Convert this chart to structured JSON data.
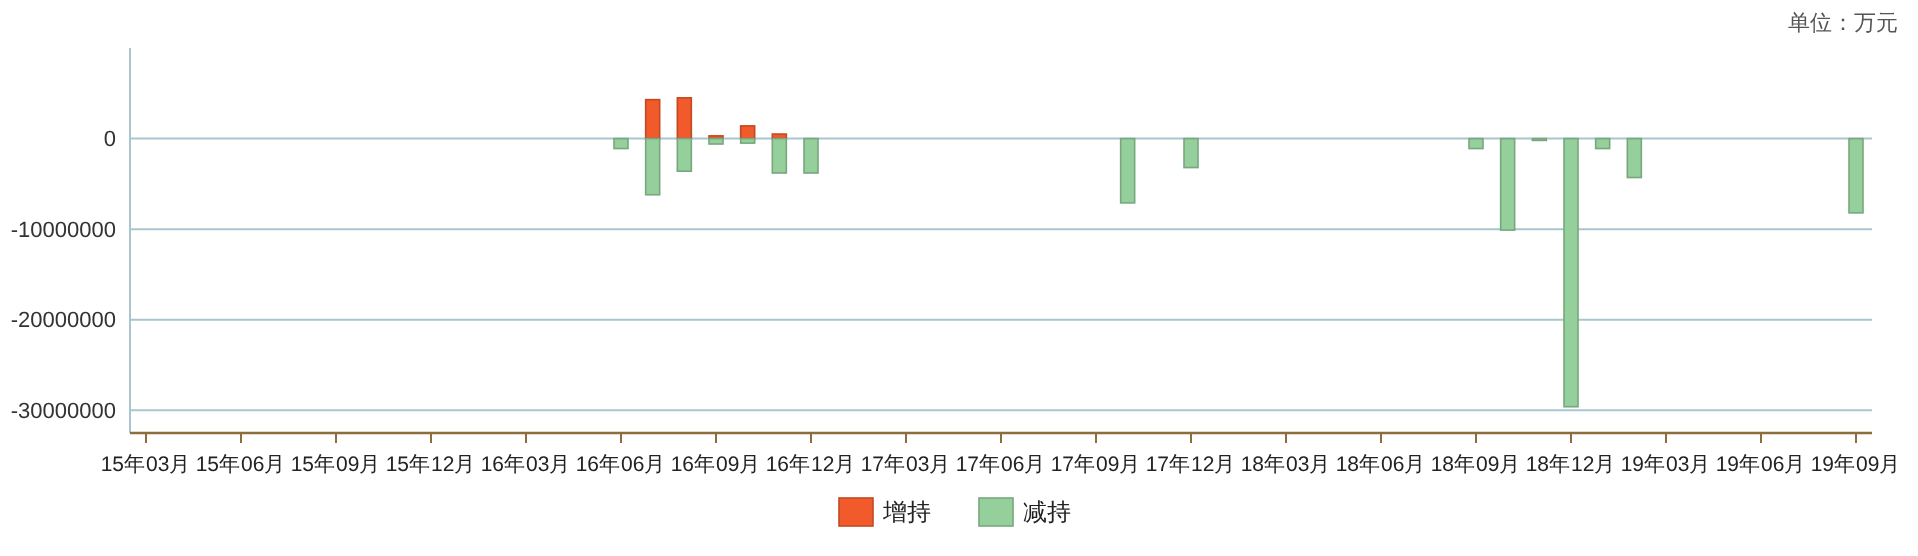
{
  "chart_data": {
    "type": "bar",
    "stacked": true,
    "annotations": [
      "单位：万元"
    ],
    "categories": [
      "15年03月",
      null,
      null,
      "15年06月",
      null,
      null,
      "15年09月",
      null,
      null,
      "15年12月",
      null,
      null,
      "16年03月",
      null,
      null,
      "16年06月",
      null,
      null,
      "16年09月",
      null,
      null,
      "16年12月",
      null,
      null,
      "17年03月",
      null,
      null,
      "17年06月",
      null,
      null,
      "17年09月",
      null,
      null,
      "17年12月",
      null,
      null,
      "18年03月",
      null,
      null,
      "18年06月",
      null,
      null,
      "18年09月",
      null,
      null,
      "18年12月",
      null,
      null,
      "19年03月",
      null,
      null,
      "19年06月",
      null,
      null,
      "19年09月"
    ],
    "series": [
      {
        "name": "增持",
        "color": "#f15a2b",
        "values": [
          null,
          null,
          null,
          null,
          null,
          null,
          null,
          null,
          null,
          null,
          null,
          null,
          null,
          null,
          null,
          null,
          4300000,
          4500000,
          300000,
          1400000,
          500000,
          null,
          null,
          null,
          null,
          null,
          null,
          null,
          null,
          null,
          null,
          null,
          null,
          null,
          null,
          null,
          null,
          null,
          null,
          null,
          null,
          null,
          null,
          null,
          null,
          null,
          null,
          null,
          null,
          null,
          null,
          null,
          null,
          null,
          null
        ]
      },
      {
        "name": "减持",
        "color": "#95cf9c",
        "values": [
          null,
          null,
          null,
          null,
          null,
          null,
          null,
          null,
          null,
          null,
          null,
          null,
          null,
          null,
          null,
          -1100000,
          -6200000,
          -3600000,
          -600000,
          -500000,
          -3800000,
          -3800000,
          null,
          null,
          null,
          null,
          null,
          null,
          null,
          null,
          null,
          -7100000,
          null,
          -3200000,
          null,
          null,
          null,
          null,
          null,
          null,
          null,
          null,
          -1100000,
          -10100000,
          -200000,
          -29600000,
          -1100000,
          -4300000,
          null,
          null,
          null,
          null,
          null,
          null,
          -8200000
        ]
      }
    ],
    "ylim": [
      -32500000,
      10000000
    ],
    "yticks": [
      0,
      -10000000,
      -20000000,
      -30000000
    ],
    "grid": "y",
    "legend": "bottom"
  }
}
